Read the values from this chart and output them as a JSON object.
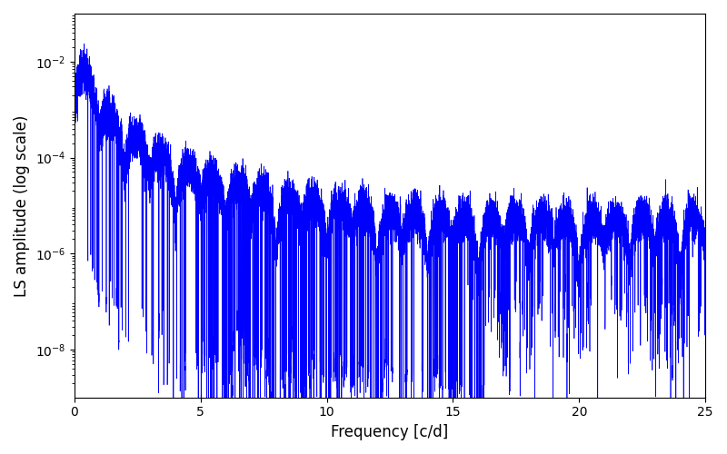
{
  "title": "",
  "xlabel": "Frequency [c/d]",
  "ylabel": "LS amplitude (log scale)",
  "xlim": [
    0,
    25
  ],
  "ylim_log": [
    1e-09,
    0.1
  ],
  "line_color": "#0000ff",
  "line_width": 0.5,
  "yscale": "log",
  "yticks": [
    1e-08,
    1e-06,
    0.0001,
    0.01
  ],
  "xticks": [
    0,
    5,
    10,
    15,
    20,
    25
  ],
  "figsize": [
    8.0,
    5.0
  ],
  "dpi": 100,
  "seed": 1234,
  "n_points": 15000,
  "freq_max": 25.0
}
